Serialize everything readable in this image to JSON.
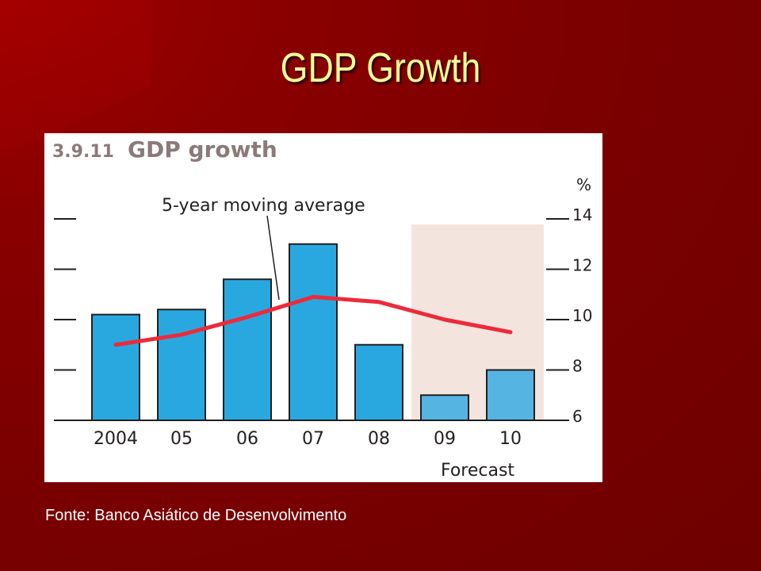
{
  "slide": {
    "title": "GDP Growth",
    "source": "Fonte: Banco Asiático de Desenvolvimento"
  },
  "chart_data": {
    "type": "bar",
    "figure_number": "3.9.11",
    "title": "GDP growth",
    "unit_label": "%",
    "categories": [
      "2004",
      "05",
      "06",
      "07",
      "08",
      "09",
      "10"
    ],
    "forecast_label": "Forecast",
    "forecast_categories": [
      "09",
      "10"
    ],
    "series": [
      {
        "kind": "bar",
        "values": [
          10.2,
          10.4,
          11.6,
          13.0,
          9.0,
          7.0,
          8.0
        ]
      },
      {
        "kind": "line",
        "name": "5-year moving average",
        "values": [
          9.0,
          9.4,
          10.1,
          10.9,
          10.7,
          10.0,
          9.5
        ]
      }
    ],
    "ylim": [
      6,
      14
    ],
    "yticks": [
      "14",
      "12",
      "10",
      "8",
      "6"
    ],
    "ytick_values": [
      14,
      12,
      10,
      8,
      6
    ],
    "colors": {
      "bar": "#29a8e0",
      "forecast_bar": "#55b4e2",
      "line": "#ed2a3a",
      "forecast_shade": "#f3e5de",
      "title": "#8b7a7a"
    }
  }
}
